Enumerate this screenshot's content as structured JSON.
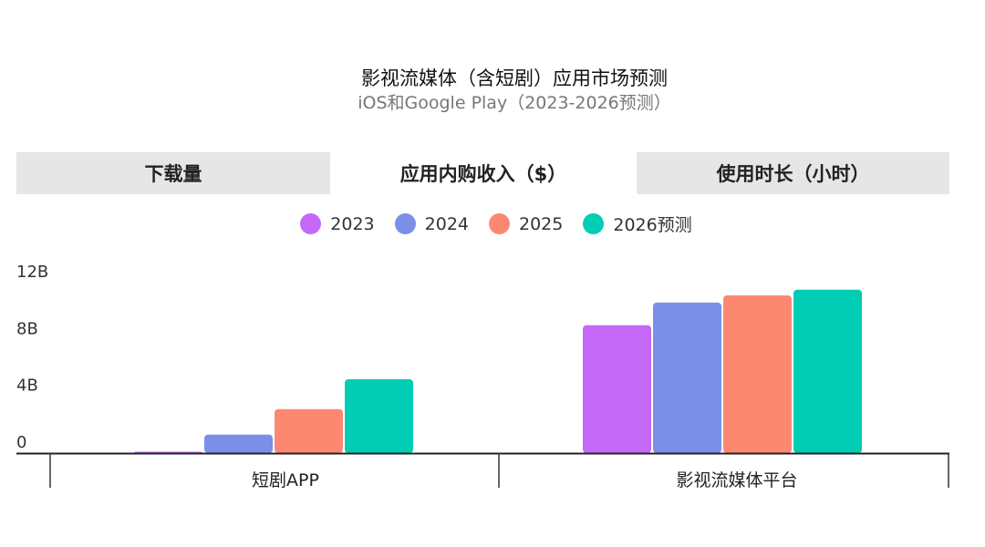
{
  "header": {
    "title": "影视流媒体（含短剧）应用市场预测",
    "subtitle": "iOS和Google Play（2023-2026预测）"
  },
  "tabs": [
    {
      "label": "下载量",
      "active": false
    },
    {
      "label": "应用内购收入（$）",
      "active": true
    },
    {
      "label": "使用时长（小时）",
      "active": false
    }
  ],
  "colors": {
    "2023": "#c468f7",
    "2024": "#7b8fe8",
    "2025": "#fd8872",
    "2026": "#00cdb4",
    "axis": "#222222"
  },
  "chart_data": {
    "type": "bar",
    "categories": [
      "短剧APP",
      "影视流媒体平台"
    ],
    "series": [
      {
        "name": "2023",
        "values": [
          0.1,
          9.0
        ]
      },
      {
        "name": "2024",
        "values": [
          1.3,
          10.6
        ]
      },
      {
        "name": "2025",
        "values": [
          3.1,
          11.1
        ]
      },
      {
        "name": "2026预测",
        "values": [
          5.2,
          11.5
        ]
      }
    ],
    "yticks": [
      {
        "value": 0,
        "label": "0"
      },
      {
        "value": 4,
        "label": "4B"
      },
      {
        "value": 8,
        "label": "8B"
      },
      {
        "value": 12,
        "label": "12B"
      }
    ],
    "ylim": [
      0,
      12
    ],
    "legend_position": "top-center",
    "grid": false
  }
}
